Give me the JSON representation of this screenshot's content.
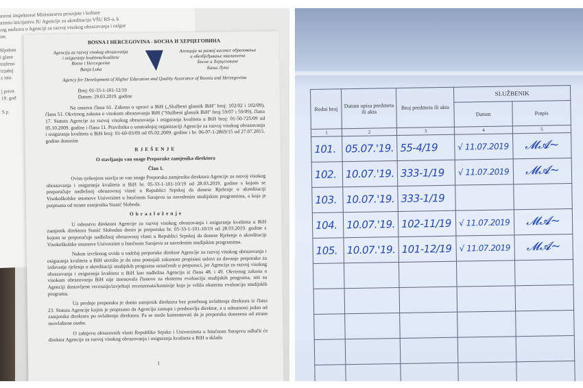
{
  "left_photo": {
    "back_page": {
      "lines": [
        "pravni inspektorat Ministarstva prosvjete i kulture",
        "primio inicijativu JU Agencije za akreditaciju VŠU RS-a, k",
        "vog nadzora u Agenciji za razvoj visokog obrazovanja i osigur",
        "ine."
      ],
      "side_fragments": [
        "Sljedom",
        "i glasn",
        "traženo",
        "izjašnj",
        "z isto.",
        "",
        "j privit",
        "19. god",
        "",
        "S p"
      ]
    },
    "document": {
      "country": "BOSNA I HERCEGOVINA - БОСНА И ХЕРЦЕГОВИНА",
      "agency_latin": [
        "Agencija za razvoj visokog obrazovanja",
        "i osiguranje kvaliteta/kvalitete",
        "Bosne i Hercegovine",
        "Banja Luka"
      ],
      "agency_cyrillic": [
        "Агенција за развој високог образовања",
        "и обезбјеђивање квалитета",
        "Босне и Херцеговине",
        "Бања Лука"
      ],
      "agency_english": "Agency for Development of Higher Education and Quality Assurance of Bosnia and Herzegovina",
      "number": "Broj: 01-33-1-101-12/19",
      "date": "Datum: 29.03.2019. godine",
      "preamble": "Na osnovu člana 61. Zakona o upravi u BiH („Službeni glasnik BiH\" broj: 102/02 i 102/09), člana 51. Okvirnog zakona o visokom obrazovanju BiH (\"Službeni glasnik BiH\" broj 59/07 i 59/09), člana 17. Statuta Agencije za razvoj visokog obrazovanja i osiguranja kvaliteta u BiH broj: 01-50-725/09 od 05.10.2009. godine i člana 11. Pravilnika o unutrašnjoj organizaciji Agencije za razvoj visokog obrazovanja i osiguranja kvaliteta u BiH broj: 01-60-03/09 od 05.02.2009. godine i br. 06-07-1-2869/15 od 27.07.2015. godine donosim",
      "title": "RJEŠENJE",
      "subtitle": "O stavljanju van snage Preporuke zamjenika direktora",
      "article": "Član 1.",
      "article_text": "Ovim rješenjem stavlja se van snage Preporuka zamjenika direktora Agencije za razvoj visokog obrazovanja i osiguranja kvaliteta u BiH br. 05-33-1-101-10/19 od 28.03.2019. godine s kojom se preporučuje nadležnoj obrazovnoj vlasti u Republici Srpskoj da donese Rješenje o akreditaciji Visokoškolske ustanove Univerzitet u Istočnom Sarajevu sa navedenim studijskim programima, a koja je potpisana od strane zamjenika Stanić Sloboda.",
      "reasoning_title": "Obrazloženje",
      "reasoning": [
        "U odsustvu direktora Agencije za razvoj visokog obrazovanja i osiguranja kvaliteta u BiH zamjenik direktora Stanić Slobodan donio je preporuku br. 05-33-1-101-10/19 od 28.03.2019. godine s kojom se preporučuje nadležnoj obrazovnoj vlasti u Republici Srpskoj da donese Rješenje o akreditaciji Visokoškolske ustanove Univerzitet u Istočnom Sarajevu sa navedenim studijskim programima.",
        "Nakon izvršenog uvida u sadržaj preporuke direktor Agencije za razvoj visokog obrazovanja i osiguranja kvaliteta u BiH utvrdio je da nisu postojali zakonom propisani uslovi za davanje preporake za izdavanje rješenja o akreditaciji studijskih programa označenih u preporuci, jer Agencija za razvoj visokog obrazovanja i osiguranja kvaliteta u BiH kao nadležna Agencija iz člana 48. i 49. Okvirnog zakona o visokom obrazovanju BiH nije imenovala članove za eksternu evaluaciju studijskih programa, niti su Agenciji dostavljene recenzije/izvještaji recenzenata/komisije koja je vršila eksternu evaluaciju studijskih programa.",
        "Uz prednje preporuku je donio zamjenik direktora bez posebnog ovlaštenja direktora iz člana 23. Statuta Agencije kojim je propisano da Agenciju zastupa i predstavlja direktor, a u odsutnosti jedan od zamjenika direktora po ovlaštenju direktora. Pa se može konstatovati da je preporuka donesena od strane neovlaštene osobe.",
        "O zahtjevu obrazovnih vlasti Republike Srpske i Univerziteta u Istočnom Sarajevu odlučit će direktor Agencije za razvoj visokog obrazovanja i osiguranja kvaliteta u BiH u skladu"
      ],
      "page_number": "1"
    }
  },
  "right_photo": {
    "table": {
      "headers": {
        "redni_broj": "Redni broj",
        "datum_upisa": "Datum upisa predmeta ili akta",
        "broj_predmeta": "Broj predmeta ili akta",
        "sluzbenik": "SLUŽBENIK",
        "datum": "Datum",
        "potpis": "Potpis"
      },
      "column_numbers": [
        "1",
        "2",
        "3",
        "4",
        "5"
      ],
      "rows": [
        {
          "redni": "101.",
          "datum_upisa": "05.07.'19.",
          "broj": "55-4/19",
          "datum": "√ 11.07.2019",
          "potpis": "signature"
        },
        {
          "redni": "102.",
          "datum_upisa": "10.07.'19.",
          "broj": "333-1/19",
          "datum": "√ 11.07.2019",
          "potpis": "signature"
        },
        {
          "redni": "103.",
          "datum_upisa": "10.07.'19.",
          "broj": "333-1/19",
          "datum": "",
          "potpis": ""
        },
        {
          "redni": "104.",
          "datum_upisa": "10.07.'19.",
          "broj": "102-11/19",
          "datum": "√ 11.07.2019",
          "potpis": "signature"
        },
        {
          "redni": "105.",
          "datum_upisa": "10.07.'19.",
          "broj": "101-12/19",
          "datum": "√ 11.07.2019",
          "potpis": "signature"
        }
      ]
    },
    "ink_color": "#2346b8"
  }
}
